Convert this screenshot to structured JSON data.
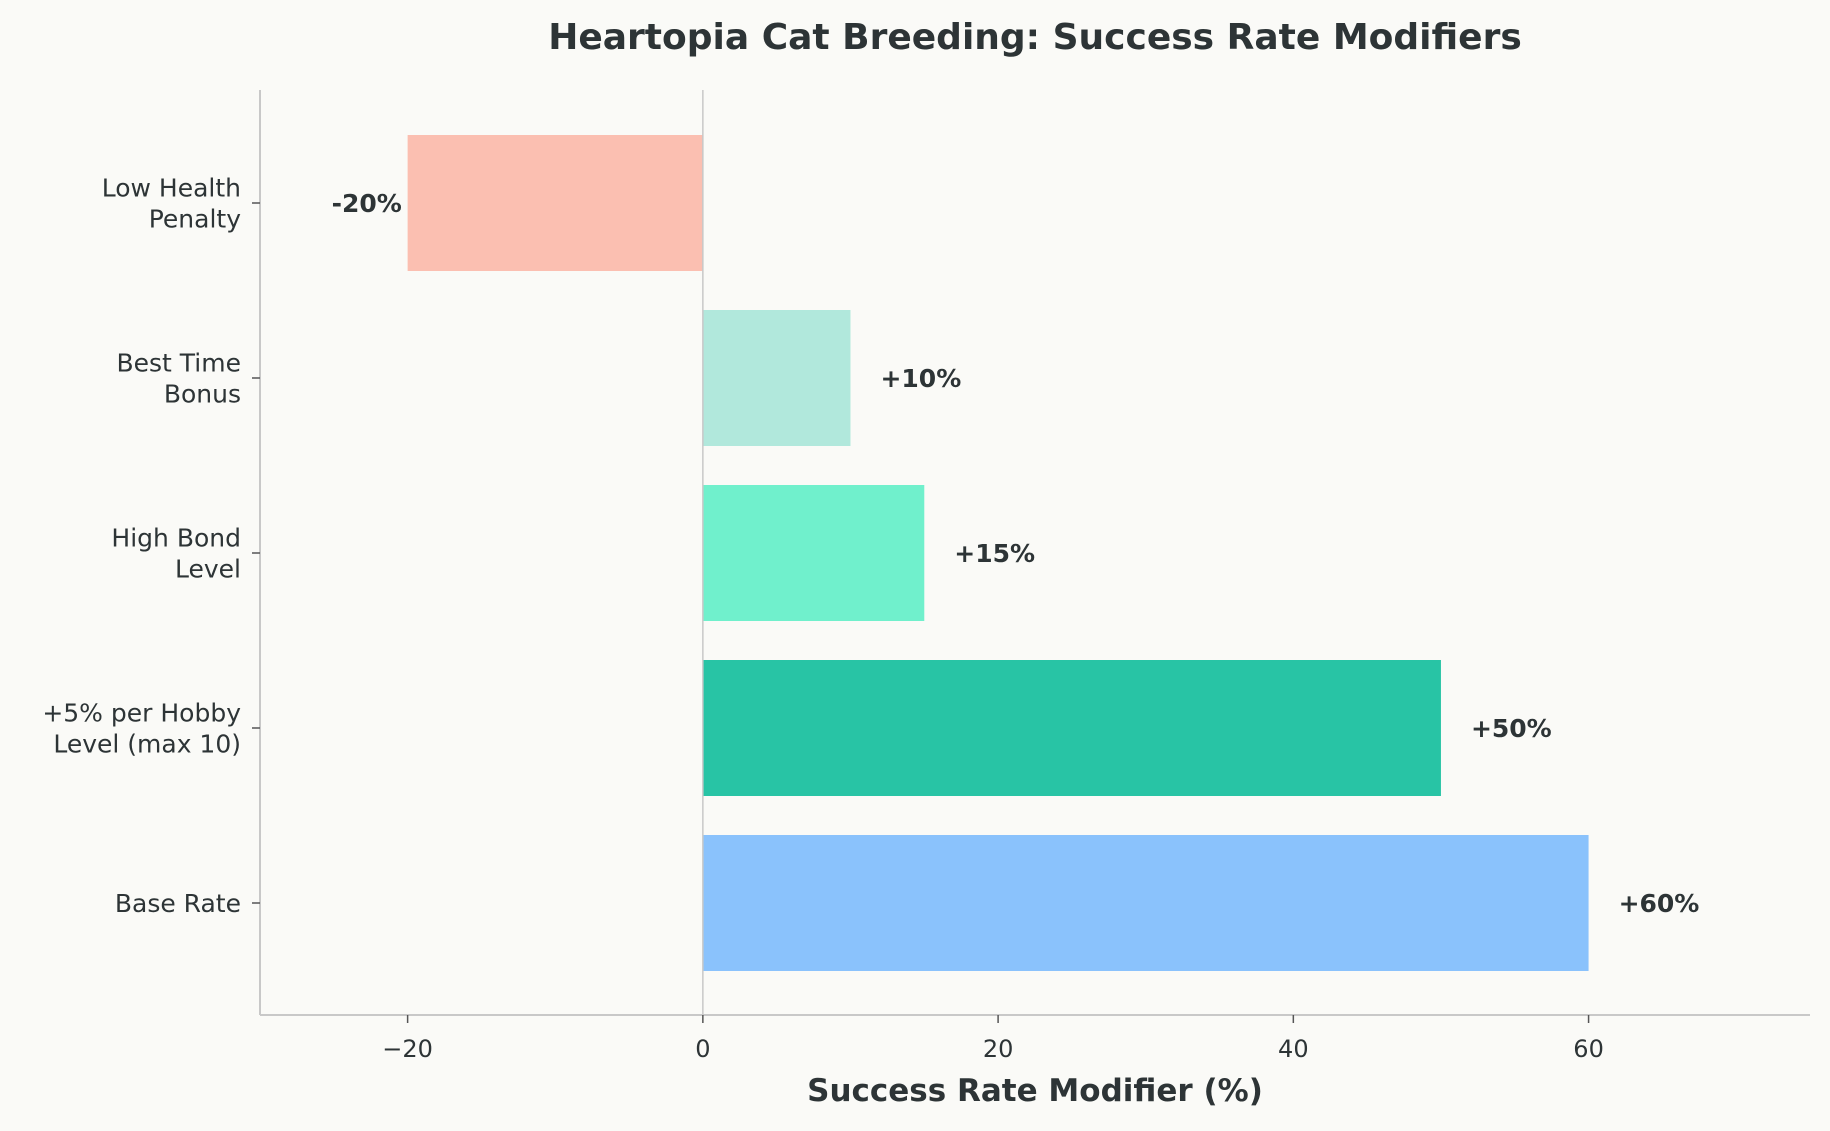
{
  "chart_data": {
    "type": "bar",
    "orientation": "horizontal",
    "title": "Heartopia Cat Breeding: Success Rate Modifiers",
    "xlabel": "Success Rate Modifier (%)",
    "ylabel": "",
    "xlim": [
      -30,
      75
    ],
    "xticks": [
      -20,
      0,
      20,
      40,
      60
    ],
    "xtick_labels": [
      "−20",
      "0",
      "20",
      "40",
      "60"
    ],
    "grid": false,
    "categories": [
      [
        "Low Health",
        "Penalty"
      ],
      [
        "Best Time",
        "Bonus"
      ],
      [
        "High Bond",
        "Level"
      ],
      [
        "+5% per Hobby",
        "Level (max 10)"
      ],
      [
        "Base Rate"
      ]
    ],
    "values": [
      -20,
      10,
      15,
      50,
      60
    ],
    "data_labels": [
      "-20%",
      "+10%",
      "+15%",
      "+50%",
      "+60%"
    ],
    "colors": [
      "#fbbfb1",
      "#b1e8dc",
      "#70f0cc",
      "#28c4a5",
      "#8ac2fc"
    ],
    "text_color": "#2d3436",
    "axis_color": "#c8c8c8"
  }
}
